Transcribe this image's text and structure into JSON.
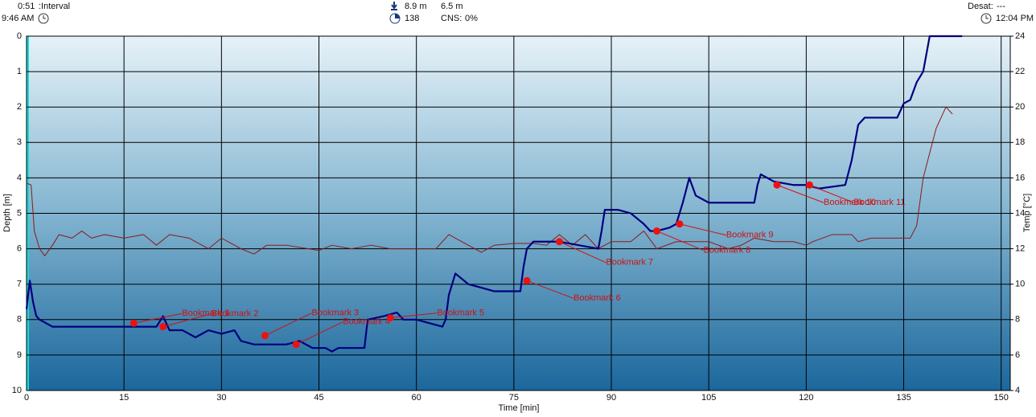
{
  "header": {
    "interval_time": "0:51",
    "interval_label": ":Interval",
    "start_time": "9:46 AM",
    "max_depth": "8.9 m",
    "avg_depth": "6.5 m",
    "sac": "138",
    "cns_label": "CNS:",
    "cns_value": "0%",
    "desat_label": "Desat:",
    "desat_value": "---",
    "end_time": "12:04 PM"
  },
  "chart_data": {
    "type": "line",
    "xlabel": "Time [min]",
    "ylabel": "Depth [m]",
    "y2label": "Temp [°C]",
    "xlim": [
      0,
      151.4
    ],
    "xticks": [
      0,
      15,
      30,
      45,
      60,
      75,
      90,
      105,
      120,
      135,
      150
    ],
    "ylim": [
      10,
      0
    ],
    "yticks": [
      0,
      1,
      2,
      3,
      4,
      5,
      6,
      7,
      8,
      9,
      10
    ],
    "y2lim": [
      4,
      24
    ],
    "y2ticks": [
      4,
      6,
      8,
      10,
      12,
      14,
      16,
      18,
      20,
      22,
      24
    ],
    "grid": true,
    "series": [
      {
        "name": "Depth",
        "color": "#000080",
        "x": [
          0,
          0.5,
          1,
          1.5,
          2,
          3,
          4,
          10,
          16,
          20,
          21,
          22,
          24,
          26,
          28,
          30,
          32,
          33,
          35,
          40,
          42,
          44,
          46,
          47,
          48,
          52,
          52.5,
          55,
          57,
          58,
          60,
          62,
          64,
          64.5,
          65,
          66,
          68,
          70,
          72,
          76,
          76.5,
          77,
          78,
          82,
          85,
          88,
          88.5,
          89,
          91,
          93,
          95,
          96,
          97,
          99,
          100,
          101,
          102,
          103,
          105,
          108,
          110,
          112,
          112.5,
          113,
          115,
          118,
          120,
          122,
          126,
          127,
          128,
          129,
          131,
          134,
          135,
          136,
          137,
          138,
          138.5,
          139,
          144
        ],
        "values": [
          7.7,
          6.9,
          7.5,
          7.9,
          8.0,
          8.1,
          8.2,
          8.2,
          8.2,
          8.2,
          7.9,
          8.3,
          8.3,
          8.5,
          8.3,
          8.4,
          8.3,
          8.6,
          8.7,
          8.7,
          8.6,
          8.8,
          8.8,
          8.9,
          8.8,
          8.8,
          8.0,
          7.9,
          7.8,
          8.0,
          8.0,
          8.1,
          8.2,
          8.0,
          7.3,
          6.7,
          7.0,
          7.1,
          7.2,
          7.2,
          6.5,
          6.0,
          5.8,
          5.8,
          5.9,
          6.0,
          5.5,
          4.9,
          4.9,
          5.0,
          5.3,
          5.5,
          5.5,
          5.4,
          5.3,
          4.7,
          4.0,
          4.5,
          4.7,
          4.7,
          4.7,
          4.7,
          4.2,
          3.9,
          4.1,
          4.2,
          4.2,
          4.3,
          4.2,
          3.5,
          2.5,
          2.3,
          2.3,
          2.3,
          1.9,
          1.8,
          1.3,
          1.0,
          0.5,
          0,
          0
        ]
      },
      {
        "name": "Temp",
        "color": "#8b1a1a",
        "axis": "y2",
        "x": [
          0,
          0.7,
          1.2,
          2,
          2.8,
          4,
          5,
          7,
          8.5,
          10,
          12,
          15,
          18,
          20,
          22,
          25,
          28,
          30,
          33,
          35,
          37,
          40,
          45,
          47,
          50,
          53,
          56,
          60,
          63,
          65,
          67,
          70,
          72,
          75,
          78,
          80,
          82,
          84,
          86,
          88,
          90,
          93,
          95,
          97,
          100,
          102,
          105,
          108,
          110,
          112,
          115,
          118,
          120,
          121,
          124,
          127,
          128,
          130,
          134,
          136,
          137,
          138,
          140,
          141.5,
          142.5
        ],
        "values": [
          15.7,
          15.6,
          13,
          12,
          11.6,
          12.2,
          12.8,
          12.6,
          13.0,
          12.6,
          12.8,
          12.6,
          12.8,
          12.2,
          12.8,
          12.6,
          12.0,
          12.6,
          12.0,
          11.7,
          12.2,
          12.2,
          11.9,
          12.2,
          12.0,
          12.2,
          12.0,
          12.0,
          12.0,
          12.8,
          12.4,
          11.8,
          12.2,
          12.3,
          12.3,
          12.2,
          12.8,
          12.2,
          12.8,
          12.0,
          12.4,
          12.4,
          13.0,
          12.0,
          12.4,
          12.4,
          12.4,
          12.0,
          12.2,
          12.6,
          12.4,
          12.4,
          12.2,
          12.4,
          12.8,
          12.8,
          12.4,
          12.6,
          12.6,
          12.6,
          13.3,
          16,
          18.8,
          20,
          19.6
        ]
      }
    ],
    "bookmarks": [
      {
        "name": "Bookmark 1",
        "time": 16.5,
        "depth": 8.1
      },
      {
        "name": "Bookmark 2",
        "time": 21,
        "depth": 8.2
      },
      {
        "name": "Bookmark 3",
        "time": 36.7,
        "depth": 8.45
      },
      {
        "name": "Bookmark 4",
        "time": 41.5,
        "depth": 8.7
      },
      {
        "name": "Bookmark 5",
        "time": 56,
        "depth": 7.95
      },
      {
        "name": "Bookmark 6",
        "time": 77,
        "depth": 6.9
      },
      {
        "name": "Bookmark 7",
        "time": 82,
        "depth": 5.8
      },
      {
        "name": "Bookmark 8",
        "time": 97,
        "depth": 5.5
      },
      {
        "name": "Bookmark 9",
        "time": 100.5,
        "depth": 5.3
      },
      {
        "name": "Bookmark 10",
        "time": 115.5,
        "depth": 4.2
      },
      {
        "name": "Bookmark 11",
        "time": 120.5,
        "depth": 4.2
      }
    ]
  }
}
